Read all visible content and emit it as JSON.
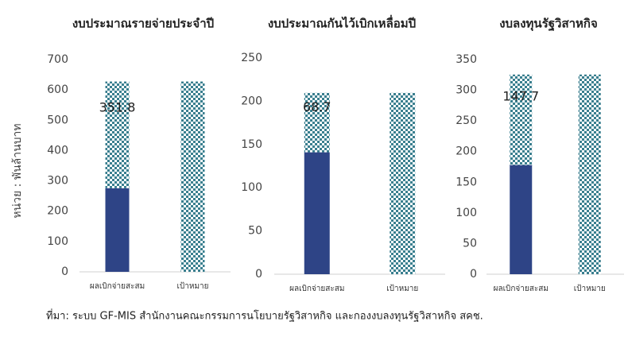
{
  "chart_data": [
    {
      "type": "bar",
      "stacked": true,
      "title": "งบประมาณรายจ่ายประจำปี",
      "categories": [
        "ผลเบิกจ่ายสะสม",
        "เป้าหมาย"
      ],
      "series": [
        {
          "color": "#2e4486",
          "values": [
            276,
            null
          ]
        },
        {
          "color": "#3a7f8f",
          "pattern": "checker",
          "values": [
            351.8,
            627.8
          ],
          "value_labels": [
            "351.8",
            null
          ]
        }
      ],
      "ylim": [
        0,
        700
      ],
      "yticks": [
        0,
        100,
        200,
        300,
        400,
        500,
        600,
        700
      ]
    },
    {
      "type": "bar",
      "stacked": true,
      "title": "งบประมาณกันไว้เบิกเหลื่อมปี",
      "categories": [
        "ผลเบิกจ่ายสะสม",
        "เป้าหมาย"
      ],
      "series": [
        {
          "color": "#2e4486",
          "values": [
            141,
            null
          ]
        },
        {
          "color": "#3a7f8f",
          "pattern": "checker",
          "values": [
            68.7,
            209.7
          ],
          "value_labels": [
            "68.7",
            null
          ]
        }
      ],
      "ylim": [
        0,
        250
      ],
      "yticks": [
        0,
        50,
        100,
        150,
        200,
        250
      ]
    },
    {
      "type": "bar",
      "stacked": true,
      "title": "งบลงทุนรัฐวิสาหกิจ",
      "categories": [
        "ผลเบิกจ่ายสะสม",
        "เป้าหมาย"
      ],
      "series": [
        {
          "color": "#2e4486",
          "values": [
            178,
            null
          ]
        },
        {
          "color": "#3a7f8f",
          "pattern": "checker",
          "values": [
            147.7,
            325.7
          ],
          "value_labels": [
            "147.7",
            null
          ]
        }
      ],
      "ylim": [
        0,
        350
      ],
      "yticks": [
        0,
        50,
        100,
        150,
        200,
        250,
        300,
        350
      ]
    }
  ],
  "y_axis_label": "หน่วย : พันล้านบาท",
  "source": "ที่มา: ระบบ GF-MIS สำนักงานคณะกรรมการนโยบายรัฐวิสาหกิจ และกองงบลงทุนรัฐวิสาหกิจ สคช."
}
